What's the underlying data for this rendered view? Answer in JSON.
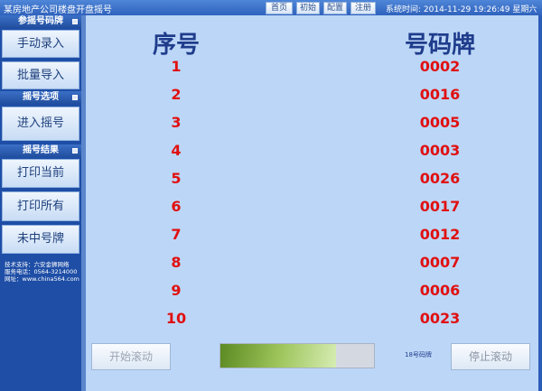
{
  "title": "某房地产公司楼盘开盘摇号",
  "nav": [
    "首页",
    "初始",
    "配置",
    "注册"
  ],
  "clock": "系统时间: 2014-11-29 19:26:49 星期六",
  "sidebar": {
    "sections": [
      "参摇号码牌",
      "摇号选项",
      "摇号结果"
    ],
    "buttons": [
      "手动录入",
      "批量导入",
      "进入摇号",
      "打印当前",
      "打印所有",
      "未中号牌"
    ],
    "footer": [
      "技术支持：六安金狮网络",
      "服务电话：0564-3214000",
      "网址：www.china564.com"
    ]
  },
  "main": {
    "headers": [
      "序号",
      "号码牌"
    ],
    "rows": [
      [
        "1",
        "0002"
      ],
      [
        "2",
        "0016"
      ],
      [
        "3",
        "0005"
      ],
      [
        "4",
        "0003"
      ],
      [
        "5",
        "0026"
      ],
      [
        "6",
        "0017"
      ],
      [
        "7",
        "0012"
      ],
      [
        "8",
        "0007"
      ],
      [
        "9",
        "0006"
      ],
      [
        "10",
        "0023"
      ]
    ],
    "start_button": "开始滚动",
    "stop_button": "停止滚动",
    "progress_percent": 75,
    "progress_label": "18号码牌"
  }
}
